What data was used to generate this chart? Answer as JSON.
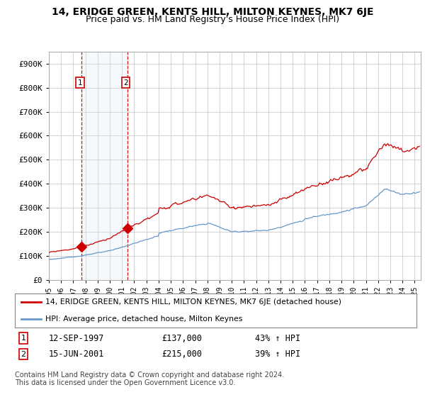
{
  "title": "14, ERIDGE GREEN, KENTS HILL, MILTON KEYNES, MK7 6JE",
  "subtitle": "Price paid vs. HM Land Registry's House Price Index (HPI)",
  "ylabel_ticks": [
    "£0",
    "£100K",
    "£200K",
    "£300K",
    "£400K",
    "£500K",
    "£600K",
    "£700K",
    "£800K",
    "£900K"
  ],
  "ytick_values": [
    0,
    100000,
    200000,
    300000,
    400000,
    500000,
    600000,
    700000,
    800000,
    900000
  ],
  "ylim": [
    0,
    950000
  ],
  "xlim_start": 1995.0,
  "xlim_end": 2025.5,
  "xtick_years": [
    1995,
    1996,
    1997,
    1998,
    1999,
    2000,
    2001,
    2002,
    2003,
    2004,
    2005,
    2006,
    2007,
    2008,
    2009,
    2010,
    2011,
    2012,
    2013,
    2014,
    2015,
    2016,
    2017,
    2018,
    2019,
    2020,
    2021,
    2022,
    2023,
    2024,
    2025
  ],
  "sale1_x": 1997.7,
  "sale1_y": 137000,
  "sale2_x": 2001.45,
  "sale2_y": 215000,
  "line_color_red": "#cc0000",
  "line_color_blue": "#6699cc",
  "shade_color": "#dce8f5",
  "grid_color": "#cccccc",
  "legend_label_red": "14, ERIDGE GREEN, KENTS HILL, MILTON KEYNES, MK7 6JE (detached house)",
  "legend_label_blue": "HPI: Average price, detached house, Milton Keynes",
  "sale1_date": "12-SEP-1997",
  "sale1_price": "£137,000",
  "sale1_hpi": "43% ↑ HPI",
  "sale2_date": "15-JUN-2001",
  "sale2_price": "£215,000",
  "sale2_hpi": "39% ↑ HPI",
  "footer": "Contains HM Land Registry data © Crown copyright and database right 2024.\nThis data is licensed under the Open Government Licence v3.0."
}
